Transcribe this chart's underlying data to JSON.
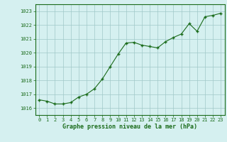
{
  "x": [
    0,
    1,
    2,
    3,
    4,
    5,
    6,
    7,
    8,
    9,
    10,
    11,
    12,
    13,
    14,
    15,
    16,
    17,
    18,
    19,
    20,
    21,
    22,
    23
  ],
  "y": [
    1016.6,
    1016.5,
    1016.3,
    1016.3,
    1016.4,
    1016.8,
    1017.0,
    1017.4,
    1018.1,
    1019.0,
    1019.9,
    1020.7,
    1020.75,
    1020.55,
    1020.45,
    1020.35,
    1020.8,
    1021.1,
    1021.35,
    1022.1,
    1021.55,
    1022.6,
    1022.7,
    1022.85
  ],
  "line_color": "#1a6b1a",
  "marker_color": "#1a6b1a",
  "bg_color": "#d5f0f0",
  "grid_color": "#a0c8c8",
  "xlabel": "Graphe pression niveau de la mer (hPa)",
  "xlabel_color": "#1a6b1a",
  "ylabel_ticks": [
    1016,
    1017,
    1018,
    1019,
    1020,
    1021,
    1022,
    1023
  ],
  "xlim": [
    -0.5,
    23.5
  ],
  "ylim": [
    1015.5,
    1023.5
  ],
  "xticks": [
    0,
    1,
    2,
    3,
    4,
    5,
    6,
    7,
    8,
    9,
    10,
    11,
    12,
    13,
    14,
    15,
    16,
    17,
    18,
    19,
    20,
    21,
    22,
    23
  ],
  "tick_label_fontsize": 5.0,
  "xlabel_fontsize": 6.0,
  "line_width": 0.8,
  "marker_size": 3.5
}
